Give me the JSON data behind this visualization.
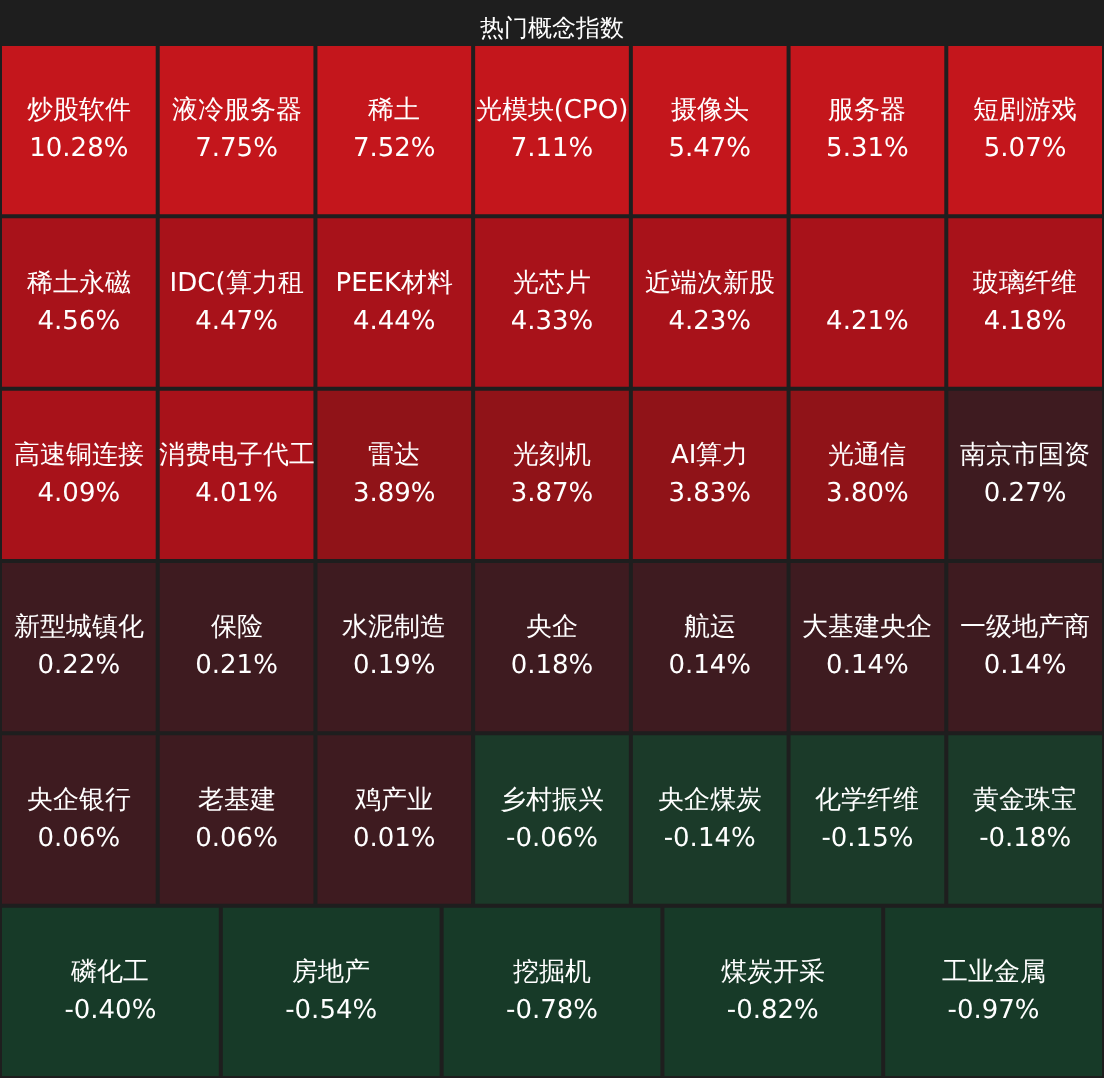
{
  "chart_data": {
    "type": "other",
    "title": "热门概念指数",
    "categories": [
      "炒股软件",
      "液冷服务器",
      "稀土",
      "光模块(CPO)",
      "摄像头",
      "服务器",
      "短剧游戏",
      "稀土永磁",
      "IDC(算力租",
      "PEEK材料",
      "光芯片",
      "近端次新股",
      null,
      "玻璃纤维",
      "高速铜连接",
      "消费电子代工",
      "雷达",
      "光刻机",
      "AI算力",
      "光通信",
      "南京市国资",
      "新型城镇化",
      "保险",
      "水泥制造",
      "央企",
      "航运",
      "大基建央企",
      "一级地产商",
      "央企银行",
      "老基建",
      "鸡产业",
      "乡村振兴",
      "央企煤炭",
      "化学纤维",
      "黄金珠宝",
      "磷化工",
      "房地产",
      "挖掘机",
      "煤炭开采",
      "工业金属"
    ],
    "values": [
      10.28,
      7.75,
      7.52,
      7.11,
      5.47,
      5.31,
      5.07,
      4.56,
      4.47,
      4.44,
      4.33,
      4.23,
      4.21,
      4.18,
      4.09,
      4.01,
      3.89,
      3.87,
      3.83,
      3.8,
      0.27,
      0.22,
      0.21,
      0.19,
      0.18,
      0.14,
      0.14,
      0.14,
      0.06,
      0.06,
      0.01,
      -0.06,
      -0.14,
      -0.15,
      -0.18,
      -0.4,
      -0.54,
      -0.78,
      -0.82,
      -0.97
    ],
    "value_labels": [
      "10.28%",
      "7.75%",
      "7.52%",
      "7.11%",
      "5.47%",
      "5.31%",
      "5.07%",
      "4.56%",
      "4.47%",
      "4.44%",
      "4.33%",
      "4.23%",
      "4.21%",
      "4.18%",
      "4.09%",
      "4.01%",
      "3.89%",
      "3.87%",
      "3.83%",
      "3.80%",
      "0.27%",
      "0.22%",
      "0.21%",
      "0.19%",
      "0.18%",
      "0.14%",
      "0.14%",
      "0.14%",
      "0.06%",
      "0.06%",
      "0.01%",
      "-0.06%",
      "-0.14%",
      "-0.15%",
      "-0.18%",
      "-0.40%",
      "-0.54%",
      "-0.78%",
      "-0.82%",
      "-0.97%"
    ],
    "colors": [
      "#c4161c",
      "#c4161c",
      "#c4161c",
      "#c4161c",
      "#c4161c",
      "#c4161c",
      "#c4161c",
      "#a8121a",
      "#a8121a",
      "#a8121a",
      "#a8121a",
      "#a8121a",
      "#a8121a",
      "#a8121a",
      "#a8121a",
      "#a8121a",
      "#901318",
      "#901318",
      "#901318",
      "#901318",
      "#3e1b20",
      "#3e1b20",
      "#3e1b20",
      "#3e1b20",
      "#3e1b20",
      "#3e1b20",
      "#3e1b20",
      "#3e1b20",
      "#3e1b20",
      "#3e1b20",
      "#3e1b20",
      "#1b3a29",
      "#1b3a29",
      "#1b3a29",
      "#1b3a29",
      "#173a28",
      "#173a28",
      "#173a28",
      "#173a28",
      "#173a28"
    ]
  }
}
